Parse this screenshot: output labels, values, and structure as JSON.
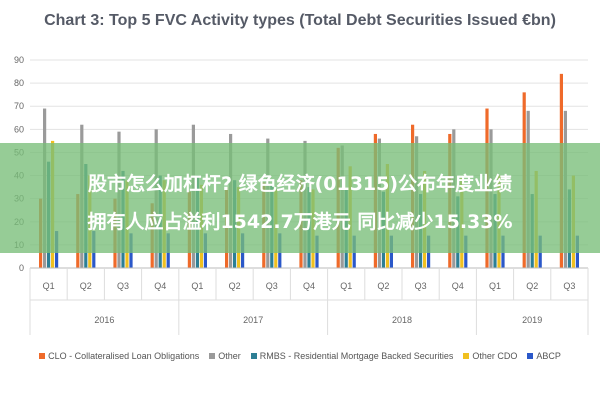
{
  "banner": {
    "line1": "股市怎么加杠杆? 绿色经济(01315)公布年度业绩",
    "line2": "拥有人应占溢利1542.7万港元 同比减少15.33%"
  },
  "chart_data": {
    "type": "bar",
    "title": "Chart 3: Top 5 FVC Activity types (Total Debt Securities Issued €bn)",
    "ylim": [
      0,
      90
    ],
    "yticks": [
      0,
      10,
      20,
      30,
      40,
      50,
      60,
      70,
      80,
      90
    ],
    "categories": [
      "Q1",
      "Q2",
      "Q3",
      "Q4",
      "Q1",
      "Q2",
      "Q3",
      "Q4",
      "Q1",
      "Q2",
      "Q3",
      "Q4",
      "Q1",
      "Q2",
      "Q3"
    ],
    "groups": [
      {
        "label": "2016",
        "start": 0,
        "count": 4
      },
      {
        "label": "2017",
        "start": 4,
        "count": 4
      },
      {
        "label": "2018",
        "start": 8,
        "count": 4
      },
      {
        "label": "2019",
        "start": 12,
        "count": 3
      }
    ],
    "legend_position": "bottom",
    "series": [
      {
        "name": "CLO - Collateralised Loan Obligations",
        "color": "#ef6a2a",
        "values": [
          30,
          32,
          30,
          28,
          33,
          35,
          37,
          38,
          52,
          58,
          62,
          58,
          69,
          76,
          84
        ]
      },
      {
        "name": "Other",
        "color": "#9a9a9a",
        "values": [
          69,
          62,
          59,
          60,
          62,
          58,
          56,
          55,
          53,
          56,
          57,
          60,
          60,
          68,
          68
        ]
      },
      {
        "name": "RMBS - Residential Mortgage Backed Securities",
        "color": "#2d7f95",
        "values": [
          46,
          45,
          42,
          40,
          40,
          38,
          36,
          35,
          34,
          33,
          32,
          31,
          32,
          32,
          34
        ]
      },
      {
        "name": "Other CDO",
        "color": "#f0c020",
        "values": [
          55,
          40,
          38,
          38,
          36,
          35,
          34,
          34,
          44,
          45,
          42,
          40,
          40,
          42,
          40
        ]
      },
      {
        "name": "ABCP",
        "color": "#2b58c9",
        "values": [
          16,
          16,
          15,
          15,
          15,
          15,
          15,
          14,
          14,
          14,
          14,
          14,
          14,
          14,
          14
        ]
      }
    ]
  }
}
